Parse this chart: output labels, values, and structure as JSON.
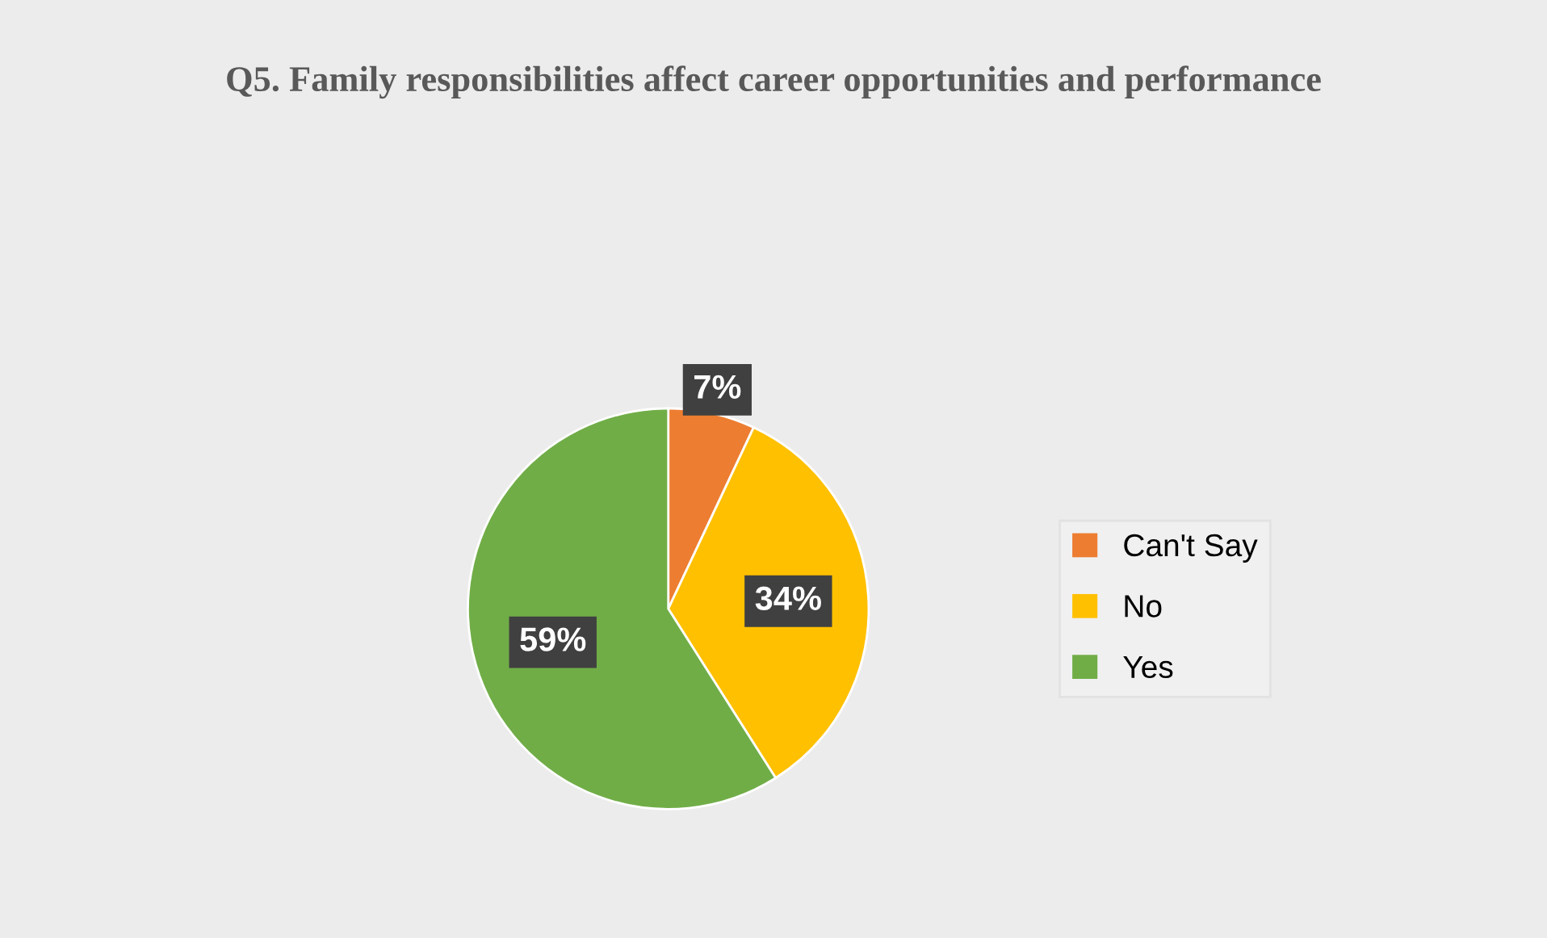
{
  "chart_data": {
    "type": "pie",
    "title": "Q5. Family responsibilities affect career opportunities and performance",
    "categories": [
      "Can't Say",
      "No",
      "Yes"
    ],
    "values": [
      7,
      34,
      59
    ],
    "colors": [
      "#ed7d31",
      "#ffc000",
      "#70ad47"
    ],
    "value_labels": [
      "7%",
      "34%",
      "59%"
    ],
    "legend": "right"
  }
}
